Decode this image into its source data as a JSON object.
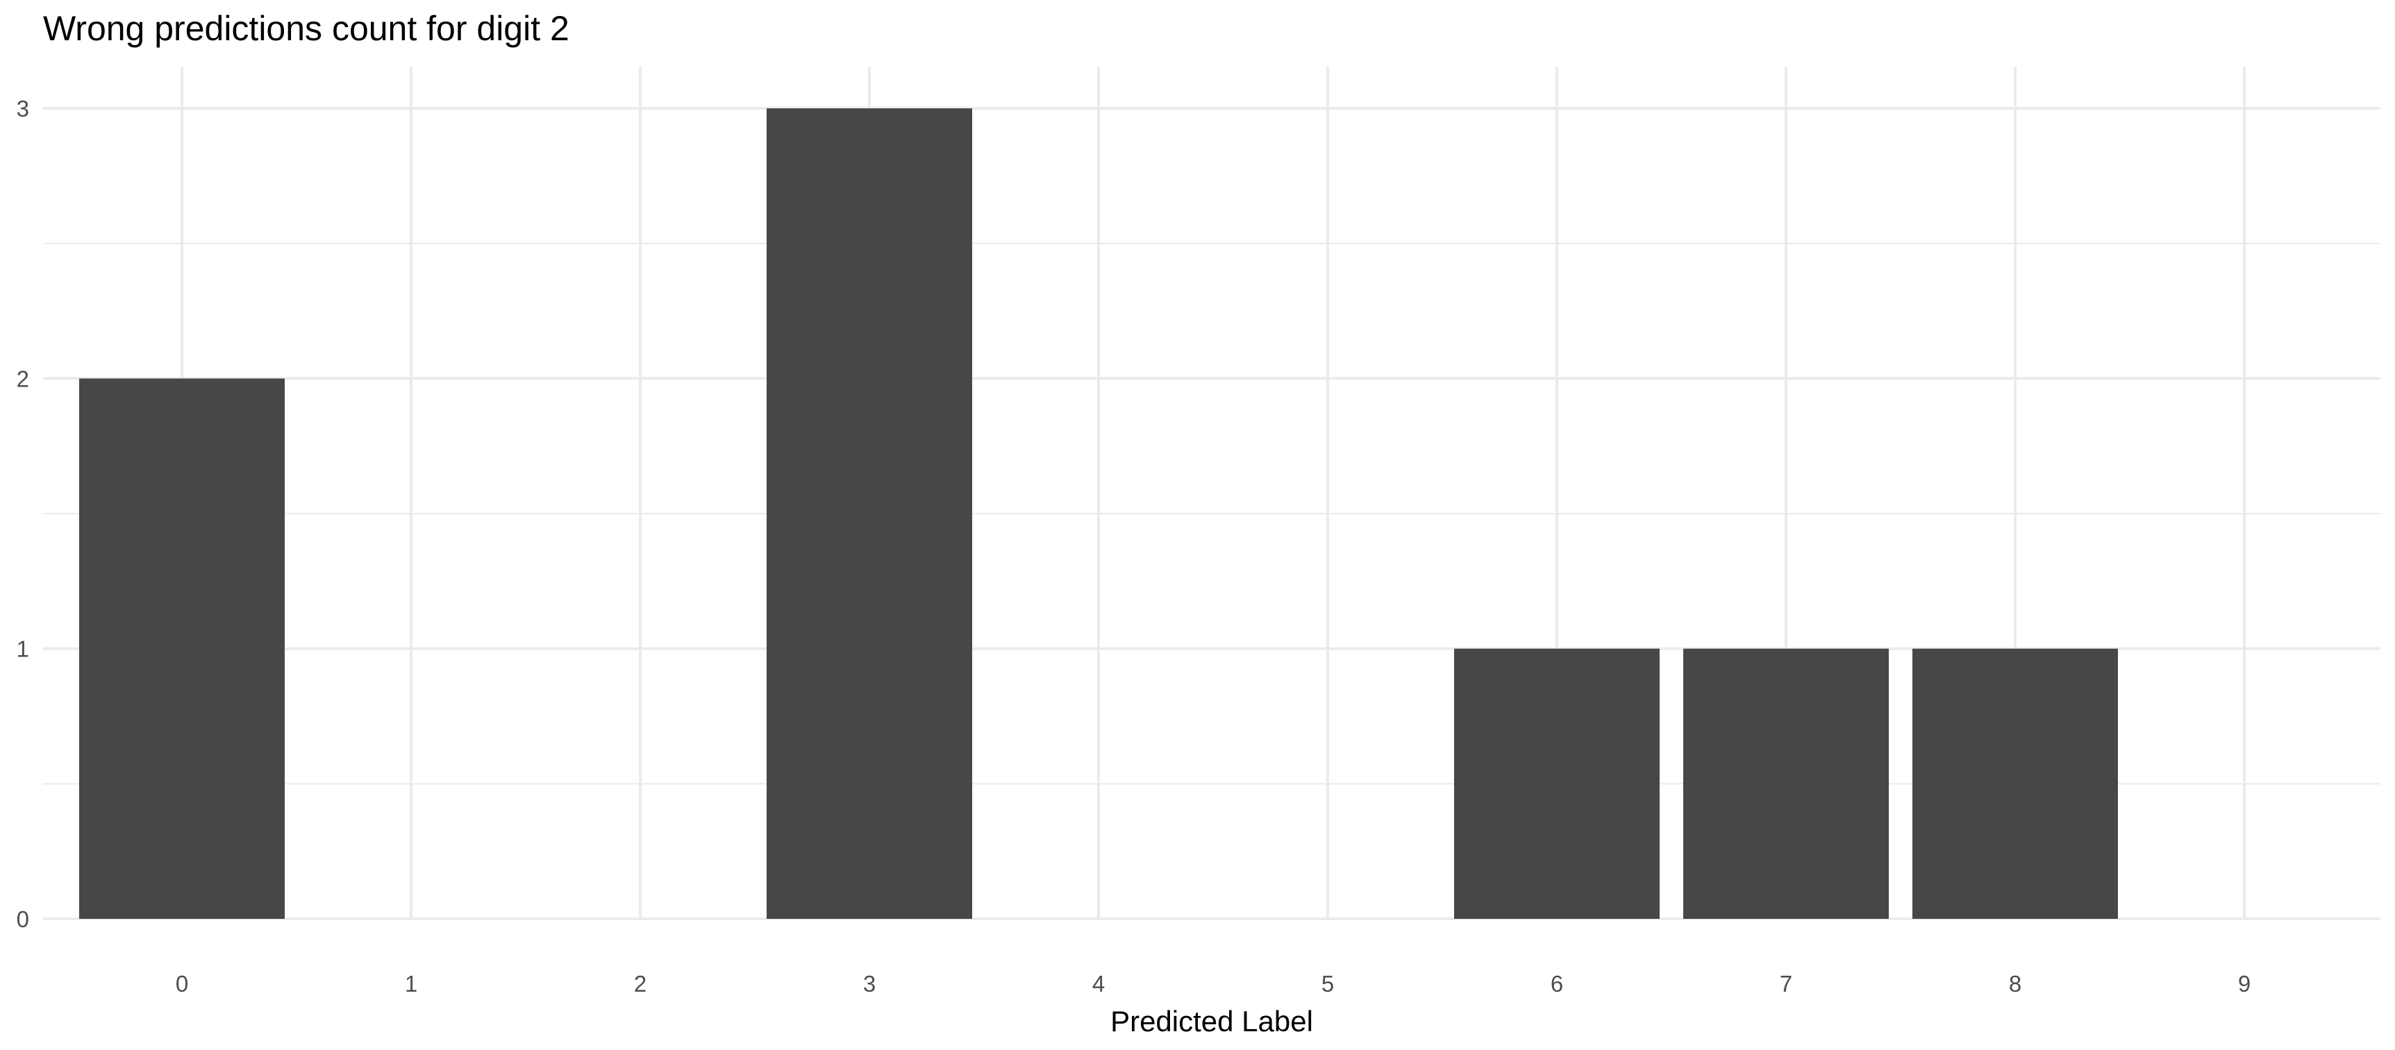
{
  "chart_data": {
    "type": "bar",
    "title": "Wrong predictions count for digit 2",
    "xlabel": "Predicted Label",
    "ylabel": "",
    "categories": [
      "0",
      "1",
      "2",
      "3",
      "4",
      "5",
      "6",
      "7",
      "8",
      "9"
    ],
    "values": [
      2,
      0,
      0,
      3,
      0,
      0,
      1,
      1,
      1,
      0
    ],
    "yticks": [
      "0",
      "1",
      "2",
      "3"
    ],
    "ylim": [
      0,
      3
    ],
    "grid": true,
    "legend": "none",
    "colors": {
      "bar": "#474747",
      "grid": "#ebebeb",
      "tick_text": "#4d4d4d",
      "background": "#ffffff"
    }
  }
}
